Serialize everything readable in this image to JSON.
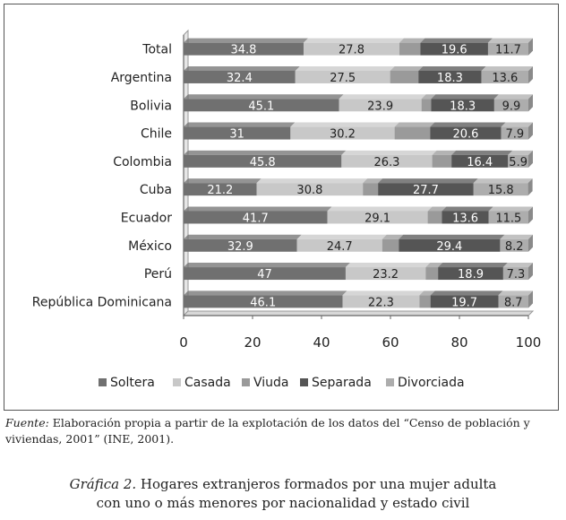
{
  "chart_data": {
    "type": "bar",
    "orientation": "horizontal",
    "stacked": true,
    "categories": [
      "Total",
      "Argentina",
      "Bolivia",
      "Chile",
      "Colombia",
      "Cuba",
      "Ecuador",
      "México",
      "Perú",
      "República Dominicana"
    ],
    "series": [
      {
        "name": "Soltera",
        "color": "#707070",
        "values": [
          34.8,
          32.4,
          45.1,
          31,
          45.8,
          21.2,
          41.7,
          32.9,
          47,
          46.1
        ]
      },
      {
        "name": "Casada",
        "color": "#c8c8c8",
        "values": [
          27.8,
          27.5,
          23.9,
          30.2,
          26.3,
          30.8,
          29.1,
          24.7,
          23.2,
          22.3
        ]
      },
      {
        "name": "Viuda",
        "color": "#9a9a9a",
        "values": [
          6.1,
          8.2,
          2.8,
          10.3,
          5.6,
          4.4,
          4.1,
          4.8,
          3.6,
          3.2
        ]
      },
      {
        "name": "Separada",
        "color": "#555555",
        "values": [
          19.6,
          18.3,
          18.3,
          20.6,
          16.4,
          27.7,
          13.6,
          29.4,
          18.9,
          19.7
        ]
      },
      {
        "name": "Divorciada",
        "color": "#adadad",
        "values": [
          11.7,
          13.6,
          9.9,
          7.9,
          5.9,
          15.8,
          11.5,
          8.2,
          7.3,
          8.7
        ]
      }
    ],
    "data_labels": [
      [
        "34.8",
        "27.8",
        "",
        "19.6",
        "11.7"
      ],
      [
        "32.4",
        "27.5",
        "",
        "18.3",
        "13.6"
      ],
      [
        "45.1",
        "23.9",
        "",
        "18.3",
        "9.9"
      ],
      [
        "31",
        "30.2",
        "",
        "20.6",
        "7.9"
      ],
      [
        "45.8",
        "26.3",
        "",
        "16.4",
        "5.9"
      ],
      [
        "21.2",
        "30.8",
        "",
        "27.7",
        "15.8"
      ],
      [
        "41.7",
        "29.1",
        "",
        "13.6",
        "11.5"
      ],
      [
        "32.9",
        "24.7",
        "",
        "29.4",
        "8.2"
      ],
      [
        "47",
        "23.2",
        "",
        "18.9",
        "7.3"
      ],
      [
        "46.1",
        "22.3",
        "",
        "19.7",
        "8.7"
      ]
    ],
    "xlim": [
      0,
      100
    ],
    "x_ticks": [
      0,
      20,
      40,
      60,
      80,
      100
    ],
    "x_tick_labels": [
      "0",
      "20",
      "40",
      "60",
      "80",
      "100"
    ],
    "legend_position": "bottom",
    "grid": false
  },
  "source_note": {
    "lead": "Fuente:",
    "text": " Elaboración propia a partir de la explotación de los datos del “Censo de población y viviendas, 2001” (INE, 2001)."
  },
  "caption": {
    "lead": "Gráfica 2.",
    "line1": " Hogares extranjeros formados por una mujer adulta",
    "line2": "con uno o más menores por nacionalidad y estado civil"
  }
}
